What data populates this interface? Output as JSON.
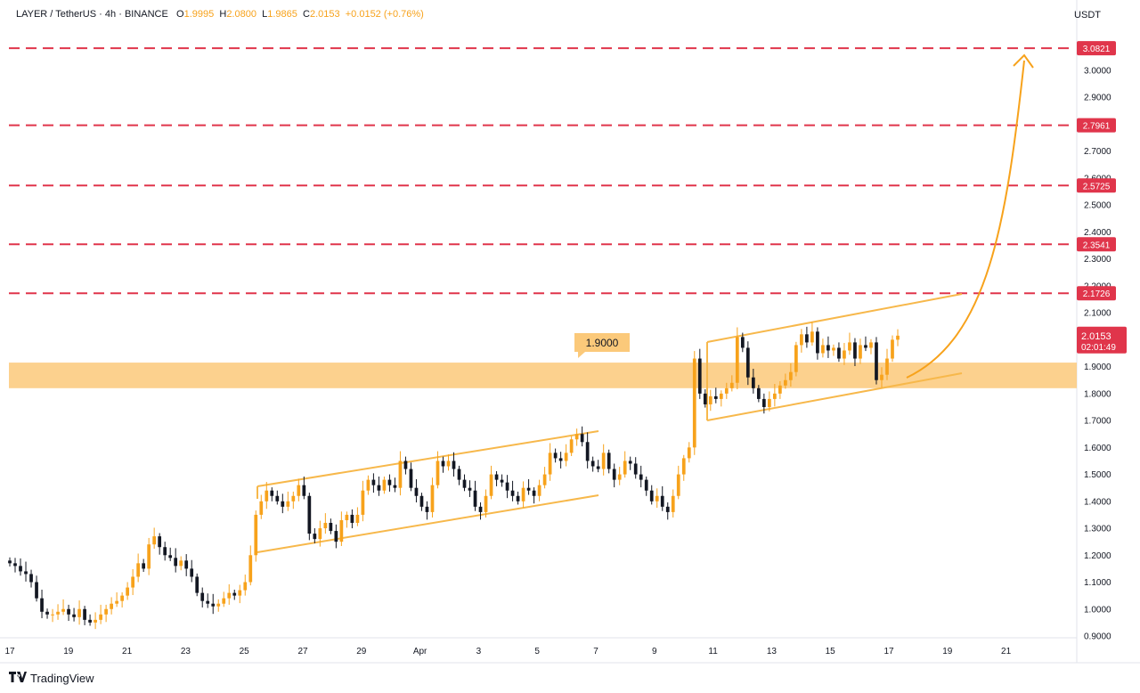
{
  "header": {
    "symbol": "LAYER / TetherUS",
    "interval": "4h",
    "exchange": "BINANCE",
    "open_label": "O",
    "open": "1.9995",
    "high_label": "H",
    "high": "2.0800",
    "low_label": "L",
    "low": "1.9865",
    "close_label": "C",
    "close": "2.0153",
    "change": "+0.0152 (+0.76%)"
  },
  "currency": "USDT",
  "branding": {
    "logo_text": "TradingView",
    "logo_icon": "tradingview-logo-icon"
  },
  "colors": {
    "candle": "#f7a21b",
    "candle_bear": "#131722",
    "level_line": "#e0354b",
    "zone_fill": "#fbc97a",
    "channel": "#f7b84b",
    "arrow": "#f7a21b"
  },
  "chart_data": {
    "type": "candlestick",
    "title": "LAYER / TetherUS · 4h · BINANCE",
    "ylim": [
      0.9,
      3.12
    ],
    "y_ticks": [
      "3.0000",
      "2.9000",
      "2.8000",
      "2.7000",
      "2.6000",
      "2.5000",
      "2.4000",
      "2.3000",
      "2.2000",
      "2.1000",
      "2.0000",
      "1.9000",
      "1.8000",
      "1.7000",
      "1.6000",
      "1.5000",
      "1.4000",
      "1.3000",
      "1.2000",
      "1.1000",
      "1.0000",
      "0.9000"
    ],
    "x_ticks": [
      "17",
      "19",
      "21",
      "23",
      "25",
      "27",
      "29",
      "Apr",
      "3",
      "5",
      "7",
      "9",
      "11",
      "13",
      "15",
      "17",
      "19",
      "21"
    ],
    "horizontal_levels": [
      "3.0821",
      "2.7961",
      "2.5725",
      "2.3541",
      "2.1726"
    ],
    "current_price": "2.0153",
    "countdown": "02:01:49",
    "support_zone": {
      "from": 1.82,
      "to": 1.915,
      "label": "1.9000"
    },
    "closes": [
      1.17,
      1.16,
      1.14,
      1.13,
      1.1,
      1.04,
      0.99,
      0.98,
      0.98,
      0.99,
      1.0,
      0.98,
      0.97,
      1.0,
      0.96,
      0.95,
      0.96,
      0.98,
      1.0,
      1.02,
      1.03,
      1.05,
      1.08,
      1.12,
      1.17,
      1.15,
      1.24,
      1.27,
      1.23,
      1.2,
      1.19,
      1.16,
      1.18,
      1.15,
      1.12,
      1.06,
      1.03,
      1.02,
      1.01,
      1.02,
      1.04,
      1.06,
      1.05,
      1.07,
      1.1,
      1.2,
      1.35,
      1.4,
      1.44,
      1.42,
      1.4,
      1.38,
      1.4,
      1.42,
      1.46,
      1.42,
      1.28,
      1.26,
      1.3,
      1.32,
      1.29,
      1.25,
      1.33,
      1.35,
      1.32,
      1.35,
      1.44,
      1.48,
      1.46,
      1.44,
      1.48,
      1.46,
      1.45,
      1.55,
      1.52,
      1.45,
      1.42,
      1.38,
      1.36,
      1.46,
      1.55,
      1.53,
      1.55,
      1.52,
      1.48,
      1.45,
      1.44,
      1.38,
      1.36,
      1.42,
      1.5,
      1.48,
      1.47,
      1.44,
      1.42,
      1.4,
      1.45,
      1.44,
      1.42,
      1.46,
      1.5,
      1.58,
      1.56,
      1.55,
      1.58,
      1.63,
      1.65,
      1.62,
      1.55,
      1.53,
      1.52,
      1.58,
      1.52,
      1.48,
      1.5,
      1.55,
      1.54,
      1.5,
      1.48,
      1.44,
      1.4,
      1.42,
      1.38,
      1.36,
      1.42,
      1.5,
      1.56,
      1.6,
      1.93,
      1.8,
      1.76,
      1.79,
      1.78,
      1.8,
      1.82,
      1.84,
      2.01,
      1.97,
      1.86,
      1.82,
      1.78,
      1.75,
      1.78,
      1.8,
      1.83,
      1.85,
      1.88,
      1.98,
      2.02,
      1.99,
      2.03,
      1.95,
      1.98,
      1.96,
      1.97,
      1.93,
      1.96,
      1.99,
      1.93,
      1.98,
      1.97,
      1.99,
      1.85,
      1.87,
      1.93,
      2.0,
      2.015
    ],
    "x_date_anchors": {
      "start": "Mar 17",
      "end": "Apr 16"
    }
  }
}
